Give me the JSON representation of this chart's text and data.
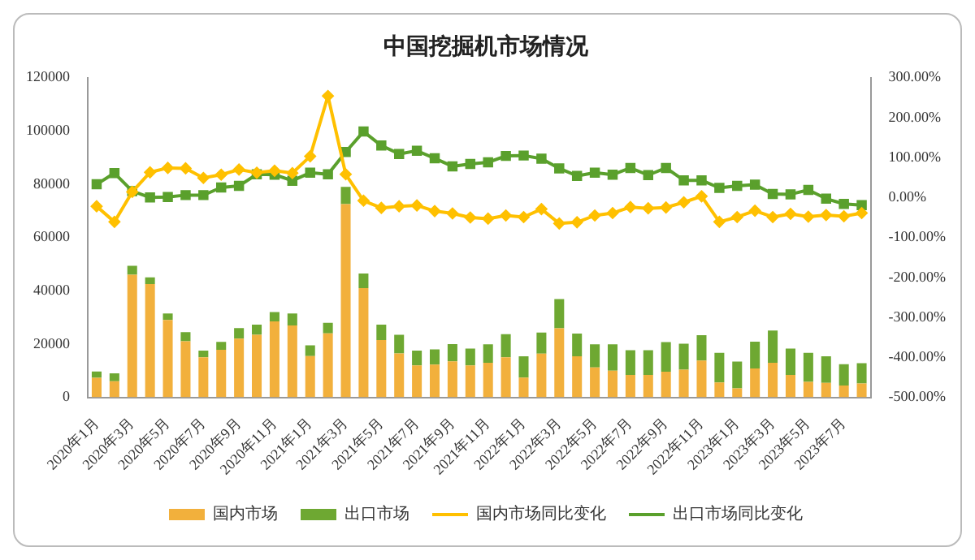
{
  "chart_data": {
    "type": "bar",
    "title": "中国挖掘机市场情况",
    "stacked": true,
    "legend": "bottom",
    "grid": false,
    "categories": [
      "2020年1月",
      null,
      "2020年3月",
      null,
      "2020年5月",
      null,
      "2020年7月",
      null,
      "2020年9月",
      null,
      "2020年11月",
      null,
      "2021年1月",
      null,
      "2021年3月",
      null,
      "2021年5月",
      null,
      "2021年7月",
      null,
      "2021年9月",
      null,
      "2021年11月",
      null,
      "2022年1月",
      null,
      "2022年3月",
      null,
      "2022年5月",
      null,
      "2022年7月",
      null,
      "2022年9月",
      null,
      "2022年11月",
      null,
      "2023年1月",
      null,
      "2023年3月",
      null,
      "2023年5月",
      null,
      "2023年7月",
      null
    ],
    "ylim": [
      0,
      120000
    ],
    "yticks": [
      0,
      20000,
      40000,
      60000,
      80000,
      100000,
      120000
    ],
    "y2lim": [
      -500,
      300
    ],
    "y2ticks": [
      {
        "value": -500,
        "label": "-500.00%"
      },
      {
        "value": -400,
        "label": "-400.00%"
      },
      {
        "value": -300,
        "label": "-300.00%"
      },
      {
        "value": -200,
        "label": "-200.00%"
      },
      {
        "value": -100,
        "label": "-100.00%"
      },
      {
        "value": 0,
        "label": "0.00%"
      },
      {
        "value": 100,
        "label": "100.00%"
      },
      {
        "value": 200,
        "label": "200.00%"
      },
      {
        "value": 300,
        "label": "300.00%"
      }
    ],
    "series": [
      {
        "name": "国内市场",
        "color": "#f2b03c",
        "values": [
          7300,
          6000,
          46000,
          42500,
          29000,
          21000,
          15000,
          17800,
          22000,
          23500,
          28500,
          27000,
          15500,
          24000,
          72500,
          41000,
          21500,
          16500,
          12000,
          12300,
          13500,
          12000,
          13000,
          15000,
          7400,
          16400,
          25900,
          15400,
          11200,
          10000,
          8400,
          8400,
          9600,
          10400,
          13800,
          5600,
          3400,
          10800,
          13000,
          8400,
          5800,
          5400,
          4400,
          5200
        ]
      },
      {
        "name": "出口市场",
        "color": "#6ea832",
        "values": [
          2400,
          3000,
          3400,
          2500,
          2500,
          3500,
          2500,
          3000,
          4000,
          3800,
          3500,
          4500,
          4000,
          4000,
          6500,
          5500,
          5800,
          7000,
          5500,
          5700,
          6500,
          6300,
          6900,
          8700,
          8000,
          7900,
          11000,
          8500,
          8700,
          9900,
          9300,
          9300,
          11100,
          9700,
          9500,
          11100,
          10000,
          10100,
          12100,
          9900,
          10900,
          10000,
          8000,
          7600
        ]
      },
      {
        "name": "国内市场同比变化",
        "type": "line",
        "axis": "y2",
        "marker": "diamond",
        "color": "#ffc000",
        "values": [
          -22,
          -61,
          14,
          63,
          74,
          73,
          49,
          57,
          70,
          62,
          67,
          61,
          103,
          254,
          58,
          -8,
          -26,
          -22,
          -20,
          -34,
          -40,
          -50,
          -53,
          -45,
          -49,
          -29,
          -65,
          -62,
          -45,
          -39,
          -24,
          -27,
          -25,
          -12,
          3,
          -61,
          -49,
          -33,
          -49,
          -41,
          -48,
          -44,
          -47,
          -39
        ]
      },
      {
        "name": "出口市场同比变化",
        "type": "line",
        "axis": "y2",
        "marker": "square",
        "color": "#5aa02c",
        "values": [
          33,
          61,
          16,
          0,
          1,
          6,
          6,
          25,
          29,
          58,
          57,
          42,
          62,
          58,
          114,
          165,
          130,
          109,
          117,
          98,
          78,
          84,
          88,
          104,
          105,
          97,
          73,
          54,
          62,
          57,
          74,
          56,
          74,
          43,
          43,
          24,
          29,
          32,
          9,
          8,
          19,
          -3,
          -16,
          -19
        ]
      }
    ]
  }
}
